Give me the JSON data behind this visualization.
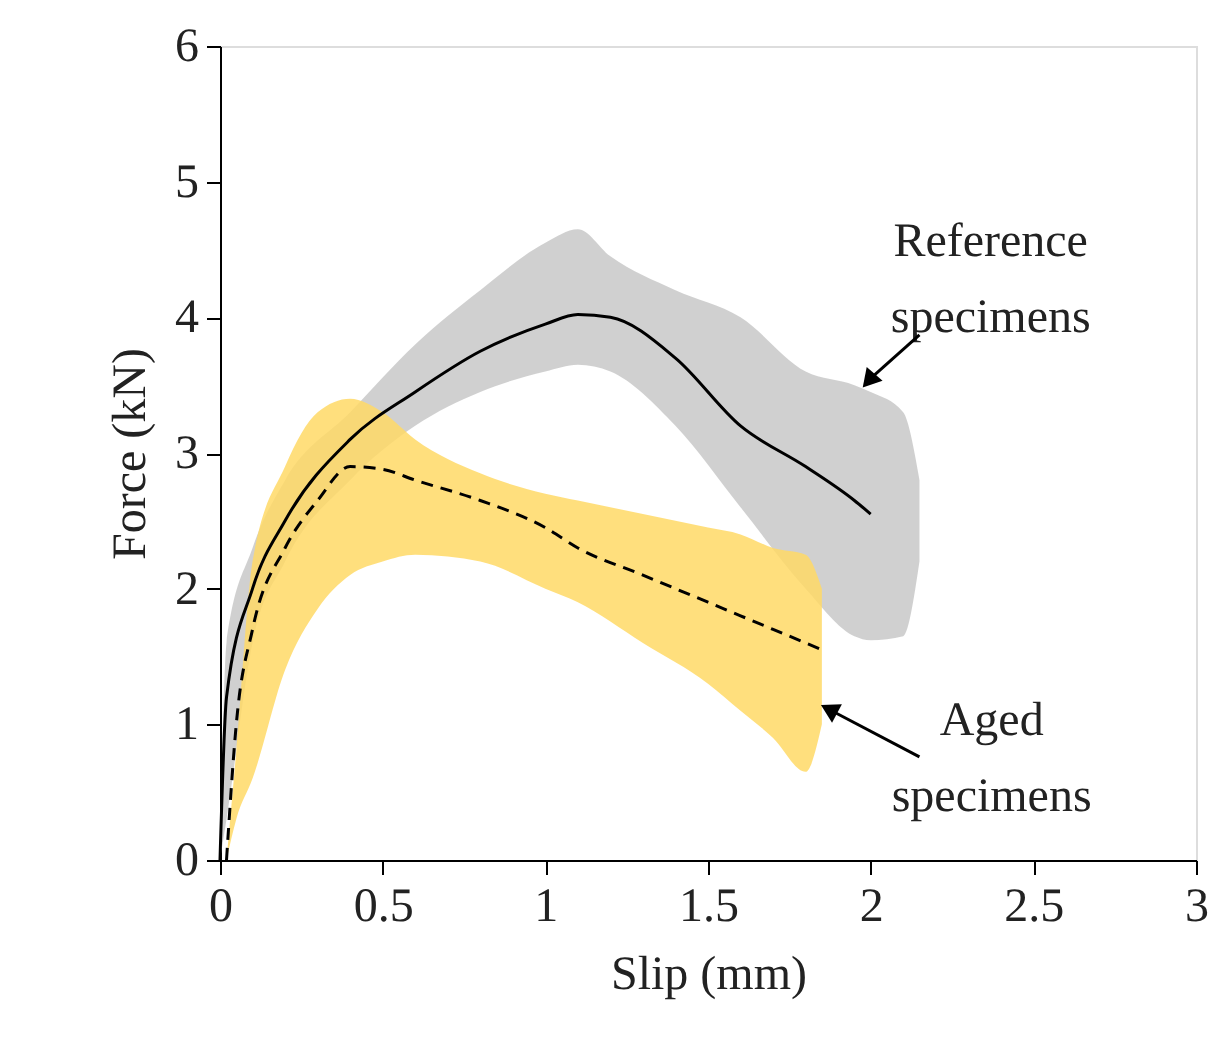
{
  "chart_data": {
    "type": "line",
    "xlabel": "Slip (mm)",
    "ylabel": "Force (kN)",
    "xlim": [
      0,
      3
    ],
    "ylim": [
      0,
      6
    ],
    "xticks": [
      0,
      0.5,
      1,
      1.5,
      2,
      2.5,
      3
    ],
    "yticks": [
      0,
      1,
      2,
      3,
      4,
      5,
      6
    ],
    "grid": false,
    "legend": false,
    "marker": "none",
    "series": [
      {
        "color": "#000000",
        "line_style": "solid",
        "x": [
          0,
          0.02,
          0.1,
          0.2,
          0.4,
          0.6,
          0.8,
          1.0,
          1.1,
          1.2,
          1.4,
          1.6,
          1.8,
          1.95,
          2.0,
          2.1,
          2.15
        ],
        "values": [
          0,
          1.2,
          2.0,
          2.5,
          3.1,
          3.45,
          3.75,
          3.95,
          4.02,
          4.0,
          3.7,
          3.2,
          2.9,
          2.65,
          2.55,
          null,
          null
        ],
        "lower": [
          0,
          0.3,
          1.6,
          2.2,
          2.8,
          3.2,
          3.45,
          3.6,
          3.65,
          3.6,
          3.2,
          2.6,
          2.0,
          1.65,
          1.62,
          1.65,
          2.2
        ],
        "upper": [
          0,
          1.6,
          2.3,
          2.8,
          3.3,
          3.8,
          4.2,
          4.55,
          4.65,
          4.45,
          4.2,
          4.0,
          3.6,
          3.5,
          3.45,
          3.3,
          2.8
        ]
      },
      {
        "color": "#000000",
        "line_style": "dashed",
        "x": [
          0.02,
          0.05,
          0.1,
          0.2,
          0.3,
          0.4,
          0.5,
          0.6,
          0.8,
          1.0,
          1.1,
          1.3,
          1.5,
          1.6,
          1.7,
          1.8,
          1.85
        ],
        "values": [
          0,
          1.0,
          1.7,
          2.3,
          2.65,
          2.9,
          2.88,
          2.8,
          2.65,
          2.45,
          2.3,
          2.1,
          1.9,
          1.8,
          1.7,
          1.6,
          1.55
        ],
        "lower": [
          0,
          0.3,
          0.6,
          1.4,
          1.85,
          2.1,
          2.2,
          2.25,
          2.2,
          2.0,
          1.9,
          1.6,
          1.3,
          1.1,
          0.9,
          0.65,
          1.0
        ],
        "upper": [
          0,
          0.8,
          2.2,
          2.9,
          3.3,
          3.4,
          3.3,
          3.1,
          2.85,
          2.7,
          2.65,
          2.55,
          2.45,
          2.4,
          2.3,
          2.25,
          2.0
        ]
      }
    ],
    "annotations": [
      {
        "text": "Reference\nspecimens",
        "x": 2.0,
        "y": 3.55
      },
      {
        "text": "Aged\nspecimens",
        "x": 1.88,
        "y": 1.1
      }
    ]
  }
}
